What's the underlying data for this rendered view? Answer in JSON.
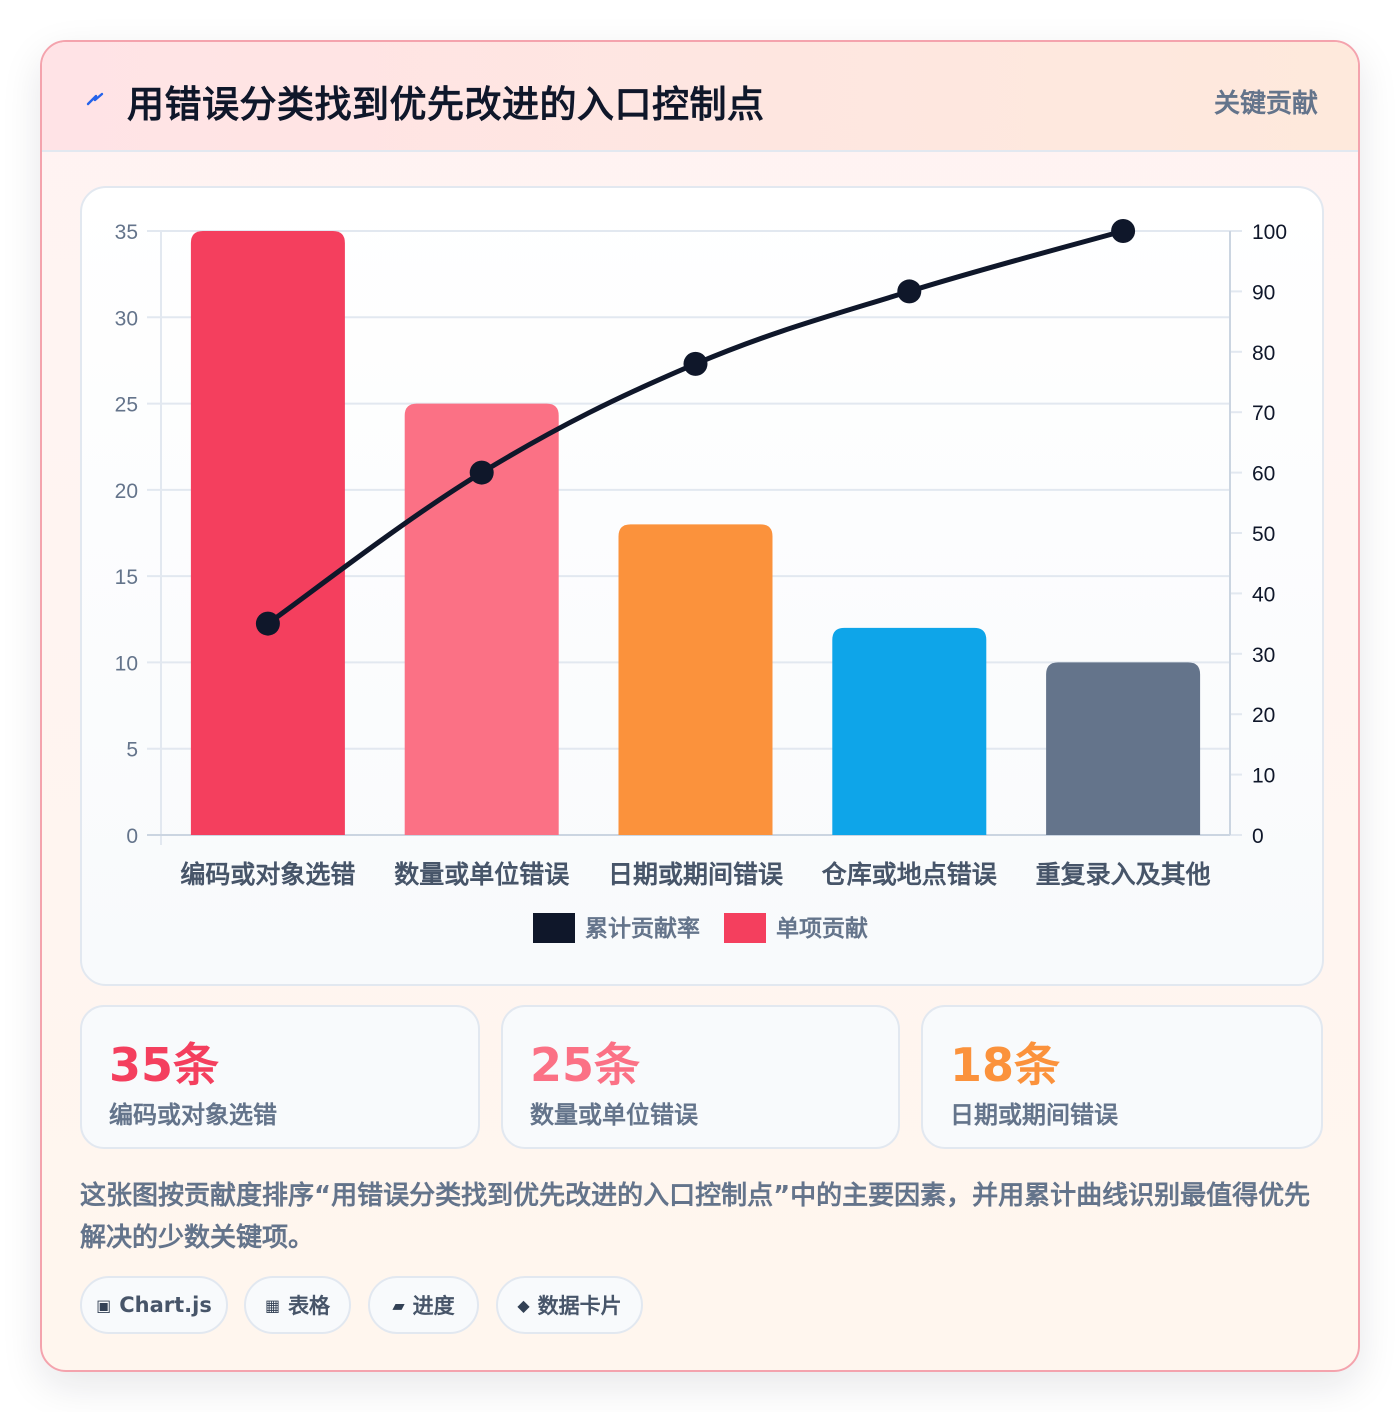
{
  "header": {
    "title": "用错误分类找到优先改进的入口控制点",
    "tag": "关键贡献"
  },
  "chart_data": {
    "type": "bar",
    "categories": [
      "编码或对象选错",
      "数量或单位错误",
      "日期或期间错误",
      "仓库或地点错误",
      "重复录入及其他"
    ],
    "series": [
      {
        "name": "单项贡献",
        "type": "bar",
        "axis": "left",
        "values": [
          35,
          25,
          18,
          12,
          10
        ]
      },
      {
        "name": "累计贡献率",
        "type": "line",
        "axis": "right",
        "values": [
          35,
          60,
          78,
          90,
          100
        ]
      }
    ],
    "bar_colors": [
      "#f43f5e",
      "#fb7185",
      "#fb923c",
      "#0ea5e9",
      "#64748b"
    ],
    "line_color": "#0f172a",
    "y_left": {
      "min": 0,
      "max": 35,
      "ticks": [
        0,
        5,
        10,
        15,
        20,
        25,
        30,
        35
      ]
    },
    "y_right": {
      "min": 0,
      "max": 100,
      "ticks": [
        0,
        10,
        20,
        30,
        40,
        50,
        60,
        70,
        80,
        90,
        100
      ]
    },
    "legend": [
      {
        "label": "累计贡献率",
        "color": "#0f172a"
      },
      {
        "label": "单项贡献",
        "color": "#f43f5e"
      }
    ],
    "legend_position": "bottom",
    "grid": true
  },
  "stats": [
    {
      "value": "35条",
      "label": "编码或对象选错",
      "color": "#f43f5e"
    },
    {
      "value": "25条",
      "label": "数量或单位错误",
      "color": "#fb7185"
    },
    {
      "value": "18条",
      "label": "日期或期间错误",
      "color": "#fb923c"
    }
  ],
  "description": "这张图按贡献度排序“用错误分类找到优先改进的入口控制点”中的主要因素，并用累计曲线识别最值得优先解决的少数关键项。",
  "pills": [
    {
      "icon": "▣",
      "label": "Chart.js"
    },
    {
      "icon": "▦",
      "label": "表格"
    },
    {
      "icon": "▰",
      "label": "进度"
    },
    {
      "icon": "◆",
      "label": "数据卡片"
    }
  ]
}
